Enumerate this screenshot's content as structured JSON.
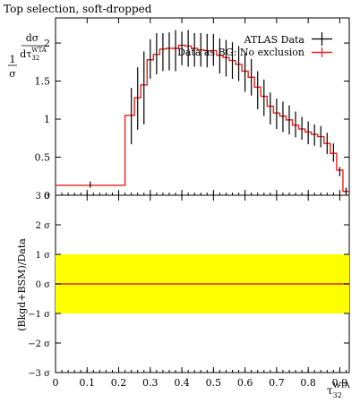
{
  "chart_data": {
    "type": "line",
    "title": "Top selection, soft-dropped",
    "xlabel": "τ₃₂^WTA",
    "xlim": [
      0,
      0.93
    ],
    "colors": {
      "data": "#000000",
      "prediction": "#e8201c",
      "band": "#ffff00"
    },
    "legend": {
      "placement": "top-right"
    },
    "top_panel": {
      "ylabel": "1/σ dσ/dτ₃₂^WTA",
      "ylim": [
        0,
        2.33
      ],
      "yticks": [
        0,
        0.5,
        1,
        1.5,
        2
      ],
      "ytick_labels": [
        "0",
        "0.5",
        "1",
        "1.5",
        "2"
      ]
    },
    "bottom_panel": {
      "ylabel": "(Bkgd+BSM)/Data",
      "ylim": [
        -3,
        3
      ],
      "yticks": [
        -3,
        -2,
        -1,
        0,
        1,
        2,
        3
      ],
      "ytick_labels": [
        "−3 σ",
        "−2 σ",
        "−1 σ",
        "0 σ",
        "1 σ",
        "2 σ",
        "3 σ"
      ],
      "band": [
        -1,
        1
      ],
      "line": 0
    },
    "xticks": [
      0,
      0.1,
      0.2,
      0.3,
      0.4,
      0.5,
      0.6,
      0.7,
      0.8,
      0.9
    ],
    "xtick_labels": [
      "0",
      "0.1",
      "0.2",
      "0.3",
      "0.4",
      "0.5",
      "0.6",
      "0.7",
      "0.8",
      "0.9"
    ],
    "series": [
      {
        "name": "ATLAS Data",
        "style": "points",
        "x": [
          0.11,
          0.24,
          0.26,
          0.28,
          0.3,
          0.32,
          0.34,
          0.36,
          0.38,
          0.4,
          0.42,
          0.44,
          0.46,
          0.48,
          0.5,
          0.52,
          0.54,
          0.56,
          0.58,
          0.6,
          0.62,
          0.64,
          0.66,
          0.68,
          0.7,
          0.72,
          0.74,
          0.76,
          0.78,
          0.8,
          0.82,
          0.84,
          0.86,
          0.88,
          0.9,
          0.92
        ],
        "y": [
          0.14,
          1.04,
          1.27,
          1.41,
          1.79,
          1.86,
          1.88,
          1.89,
          1.9,
          1.93,
          1.93,
          1.91,
          1.91,
          1.9,
          1.91,
          1.83,
          1.8,
          1.77,
          1.73,
          1.61,
          1.55,
          1.38,
          1.28,
          1.14,
          1.07,
          1.03,
          0.99,
          0.93,
          0.88,
          0.82,
          0.79,
          0.77,
          0.68,
          0.56,
          0.31,
          0.06
        ],
        "yerr": [
          0.04,
          0.37,
          0.41,
          0.48,
          0.26,
          0.27,
          0.25,
          0.25,
          0.27,
          0.22,
          0.24,
          0.22,
          0.22,
          0.22,
          0.21,
          0.23,
          0.24,
          0.24,
          0.23,
          0.25,
          0.24,
          0.25,
          0.24,
          0.21,
          0.2,
          0.2,
          0.19,
          0.17,
          0.15,
          0.15,
          0.14,
          0.14,
          0.14,
          0.12,
          0.06,
          0.04
        ]
      },
      {
        "name": "Data as BG: No exclusion",
        "style": "step",
        "edges": [
          0,
          0.22,
          0.25,
          0.27,
          0.29,
          0.31,
          0.33,
          0.35,
          0.37,
          0.39,
          0.41,
          0.43,
          0.45,
          0.47,
          0.49,
          0.51,
          0.53,
          0.55,
          0.57,
          0.59,
          0.61,
          0.63,
          0.65,
          0.67,
          0.69,
          0.71,
          0.73,
          0.75,
          0.77,
          0.79,
          0.81,
          0.83,
          0.85,
          0.87,
          0.89,
          0.91,
          0.93
        ],
        "values": [
          0.13,
          1.05,
          1.28,
          1.45,
          1.78,
          1.85,
          1.92,
          1.93,
          1.93,
          1.97,
          1.96,
          1.93,
          1.91,
          1.9,
          1.9,
          1.84,
          1.81,
          1.77,
          1.72,
          1.63,
          1.55,
          1.42,
          1.3,
          1.17,
          1.08,
          1.04,
          0.99,
          0.92,
          0.87,
          0.83,
          0.8,
          0.77,
          0.68,
          0.55,
          0.33,
          0.05
        ]
      }
    ]
  }
}
